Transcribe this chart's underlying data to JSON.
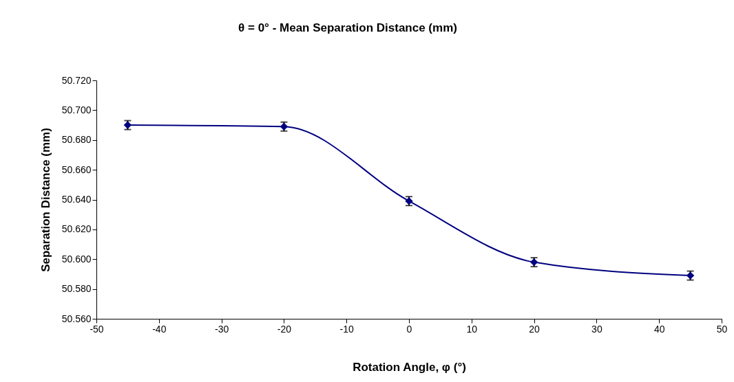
{
  "chart_data": {
    "type": "line",
    "title": "θ = 0° -  Mean Separation Distance (mm)",
    "xlabel": "Rotation Angle, φ (°)",
    "ylabel": "Separation Distance (mm)",
    "x": [
      -45,
      -20,
      0,
      20,
      45
    ],
    "series": [
      {
        "color": "#000080",
        "values": [
          50.69,
          50.689,
          50.639,
          50.598,
          50.589
        ],
        "errors": [
          0.003,
          0.003,
          0.003,
          0.003,
          0.003
        ]
      }
    ],
    "xlim": [
      -50,
      50
    ],
    "xticks": [
      -50,
      -40,
      -30,
      -20,
      -10,
      0,
      10,
      20,
      30,
      40,
      50
    ],
    "ylim": [
      50.56,
      50.72
    ],
    "yticks": [
      {
        "value": 50.56,
        "label": "50.560"
      },
      {
        "value": 50.58,
        "label": "50.580"
      },
      {
        "value": 50.6,
        "label": "50.600"
      },
      {
        "value": 50.62,
        "label": "50.620"
      },
      {
        "value": 50.64,
        "label": "50.640"
      },
      {
        "value": 50.66,
        "label": "50.660"
      },
      {
        "value": 50.68,
        "label": "50.680"
      },
      {
        "value": 50.7,
        "label": "50.700"
      },
      {
        "value": 50.72,
        "label": "50.720"
      }
    ],
    "marker": "diamond",
    "line_style": "solid",
    "grid": false,
    "legend": false
  }
}
